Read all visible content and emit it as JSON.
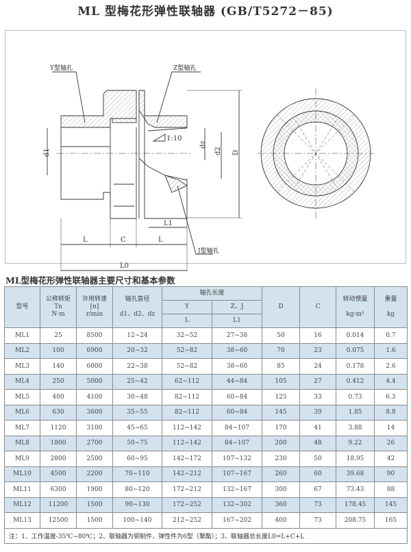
{
  "title": "ML 型梅花形弹性联轴器 (GB/T5272－85)",
  "drawing": {
    "labels": {
      "y_hole": "Y型轴孔",
      "z_hole": "Z型轴孔",
      "j_hole": "J型轴孔",
      "taper": "1:10",
      "d1": "d1",
      "dz": "dz",
      "d2": "d2",
      "D": "D",
      "L1": "L1",
      "L_left": "L",
      "C": "C",
      "L_right": "L",
      "L0": "L0"
    }
  },
  "table_title": "ML型梅花形弹性联轴器主要尺寸和基本参数",
  "table": {
    "headers": {
      "model": "型号",
      "torque": [
        "公称转矩",
        "Tn",
        "N·m"
      ],
      "speed": [
        "许用转速",
        "[n]",
        "r/min"
      ],
      "bore": [
        "轴孔直径",
        "d1、d2、dz"
      ],
      "bore_length": "轴孔长度",
      "y": "Y",
      "zj": "Z、J",
      "L": "L",
      "L1": "L1",
      "D": "D",
      "C": "C",
      "inertia": [
        "转动惯量",
        "kg·m²"
      ],
      "weight": [
        "重量",
        "kg"
      ]
    },
    "rows": [
      [
        "ML1",
        "25",
        "8500",
        "12~24",
        "32~52",
        "27~38",
        "50",
        "16",
        "0.014",
        "0.7"
      ],
      [
        "ML2",
        "100",
        "6900",
        "20~32",
        "52~82",
        "38~60",
        "70",
        "23",
        "0.075",
        "1.6"
      ],
      [
        "ML3",
        "140",
        "6000",
        "22~38",
        "52~82",
        "38~60",
        "85",
        "24",
        "0.178",
        "2.6"
      ],
      [
        "ML4",
        "250",
        "5000",
        "25~42",
        "62~112",
        "44~84",
        "105",
        "27",
        "0.412",
        "4.4"
      ],
      [
        "ML5",
        "400",
        "4100",
        "30~48",
        "82~112",
        "60~84",
        "125",
        "33",
        "0.73",
        "6.3"
      ],
      [
        "ML6",
        "630",
        "3600",
        "35~55",
        "82~112",
        "60~84",
        "145",
        "39",
        "1.85",
        "8.8"
      ],
      [
        "ML7",
        "1120",
        "3100",
        "45~65",
        "112~142",
        "84~107",
        "170",
        "41",
        "3.88",
        "14"
      ],
      [
        "ML8",
        "1800",
        "2700",
        "50~75",
        "112~142",
        "84~107",
        "200",
        "48",
        "9.22",
        "26"
      ],
      [
        "ML9",
        "2800",
        "2500",
        "60~95",
        "142~172",
        "107~132",
        "230",
        "50",
        "18.95",
        "42"
      ],
      [
        "ML10",
        "4500",
        "2200",
        "70~110",
        "142~212",
        "107~167",
        "260",
        "60",
        "39.68",
        "90"
      ],
      [
        "ML11",
        "6300",
        "1900",
        "80~120",
        "172~212",
        "132~167",
        "300",
        "67",
        "73.43",
        "88"
      ],
      [
        "ML12",
        "11200",
        "1500",
        "90~130",
        "172~252",
        "132~302",
        "360",
        "73",
        "178.45",
        "145"
      ],
      [
        "ML13",
        "12500",
        "1500",
        "100~140",
        "212~252",
        "167~202",
        "400",
        "73",
        "208.75",
        "165"
      ]
    ],
    "note": "注：1、工作温度-35℃~80℃；2、联轴器为铜制件，弹性件为6型（聚酯）；3、联轴器总长度L0=L+C+L"
  },
  "colors": {
    "header_bg": "#d3e2ef",
    "alt_row_bg": "#d3e2ef"
  }
}
